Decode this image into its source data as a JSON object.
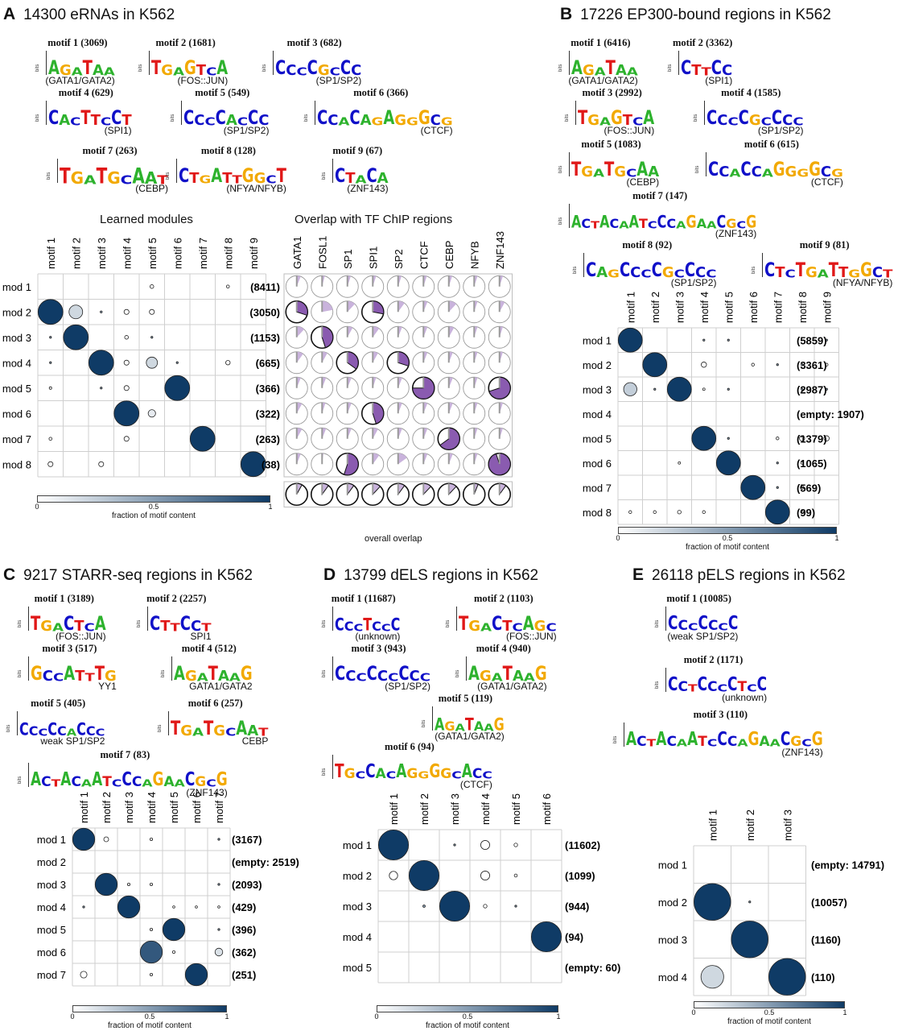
{
  "panels": {
    "A": {
      "letter": "A",
      "title": "14300 eRNAs in K562",
      "motifs": [
        {
          "title": "motif 1 (3069)",
          "seq": "AGATAA",
          "ann": "(GATA1/GATA2)"
        },
        {
          "title": "motif 2 (1681)",
          "seq": "TGAGTCA",
          "ann": "(FOS::JUN)"
        },
        {
          "title": "motif 3 (682)",
          "seq": "CCCCGCCC",
          "ann": "(SP1/SP2)"
        },
        {
          "title": "motif 4 (629)",
          "seq": "CACTTCCT",
          "ann": "(SPI1)"
        },
        {
          "title": "motif 5 (549)",
          "seq": "CCCCACCC",
          "ann": "(SP1/SP2)"
        },
        {
          "title": "motif 6 (366)",
          "seq": "CCACAGAGGGCG",
          "ann": "(CTCF)"
        },
        {
          "title": "motif 7 (263)",
          "seq": "TGATGCAAT",
          "ann": "(CEBP)"
        },
        {
          "title": "motif 8 (128)",
          "seq": "CTGATTGGCT",
          "ann": "(NFYA/NFYB)"
        },
        {
          "title": "motif 9 (67)",
          "seq": "CTACA",
          "ann": "(ZNF143)"
        }
      ],
      "modules_title": "Learned modules",
      "overlap_title": "Overlap with TF ChIP regions",
      "overall_label": "overall overlap",
      "cols": [
        "motif 1",
        "motif 2",
        "motif 3",
        "motif 4",
        "motif 5",
        "motif 6",
        "motif 7",
        "motif 8",
        "motif 9"
      ],
      "rows": [
        "mod 1",
        "mod 2",
        "mod 3",
        "mod 4",
        "mod 5",
        "mod 6",
        "mod 7",
        "mod 8"
      ],
      "counts": [
        "(8411)",
        "(3050)",
        "(1153)",
        "(665)",
        "(366)",
        "(322)",
        "(263)",
        "(38)"
      ],
      "tf_cols": [
        "GATA1",
        "FOSL1",
        "SP1",
        "SPI1",
        "SP2",
        "CTCF",
        "CEBP",
        "NFYB",
        "ZNF143"
      ]
    },
    "B": {
      "letter": "B",
      "title": "17226 EP300-bound regions in K562",
      "motifs": [
        {
          "title": "motif 1 (6416)",
          "seq": "AGATAA",
          "ann": "(GATA1/GATA2)"
        },
        {
          "title": "motif 2 (3362)",
          "seq": "CTTCC",
          "ann": "(SPI1)"
        },
        {
          "title": "motif 3 (2992)",
          "seq": "TGAGTCA",
          "ann": "(FOS::JUN)"
        },
        {
          "title": "motif 4 (1585)",
          "seq": "CCCCGCCCC",
          "ann": "(SP1/SP2)"
        },
        {
          "title": "motif 5 (1083)",
          "seq": "TGATGCAA",
          "ann": "(CEBP)"
        },
        {
          "title": "motif 6 (615)",
          "seq": "CCACCAGGGGCG",
          "ann": "(CTCF)"
        },
        {
          "title": "motif 7 (147)",
          "seq": "ACTACAATCCCAGAACGCG",
          "ann": "(ZNF143)"
        },
        {
          "title": "motif 8 (92)",
          "seq": "CAGCCCCGCCCC",
          "ann": "(SP1/SP2)"
        },
        {
          "title": "motif 9 (81)",
          "seq": "CTCTGATTGGCT",
          "ann": "(NFYA/NFYB)"
        }
      ],
      "cols": [
        "motif 1",
        "motif 2",
        "motif 3",
        "motif 4",
        "motif 5",
        "motif 6",
        "motif 7",
        "motif 8",
        "motif 9"
      ],
      "rows": [
        "mod 1",
        "mod 2",
        "mod 3",
        "mod 4",
        "mod 5",
        "mod 6",
        "mod 7",
        "mod 8"
      ],
      "counts": [
        "(5859)",
        "(3361)",
        "(2987)",
        "(empty: 1907)",
        "(1379)",
        "(1065)",
        "(569)",
        "(99)"
      ]
    },
    "C": {
      "letter": "C",
      "title": "9217 STARR-seq regions in K562",
      "motifs": [
        {
          "title": "motif 1 (3189)",
          "seq": "TGACTCA",
          "ann": "(FOS::JUN)"
        },
        {
          "title": "motif 2 (2257)",
          "seq": "CTTCCT",
          "ann": "SPI1"
        },
        {
          "title": "motif 3 (517)",
          "seq": "GCCATTTG",
          "ann": "YY1"
        },
        {
          "title": "motif 4 (512)",
          "seq": "AGATAAG",
          "ann": "GATA1/GATA2"
        },
        {
          "title": "motif 5 (405)",
          "seq": "CCCCCACCC",
          "ann": "weak SP1/SP2"
        },
        {
          "title": "motif 6 (257)",
          "seq": "TGATGCAAT",
          "ann": "CEBP"
        },
        {
          "title": "motif 7 (83)",
          "seq": "ACTACAATCCCAGAACGCG",
          "ann": "(ZNF143)"
        }
      ],
      "cols": [
        "motif 1",
        "motif 2",
        "motif 3",
        "motif 4",
        "motif 5",
        "motif 6",
        "motif 7"
      ],
      "rows": [
        "mod 1",
        "mod 2",
        "mod 3",
        "mod 4",
        "mod 5",
        "mod 6",
        "mod 7"
      ],
      "counts": [
        "(3167)",
        "(empty: 2519)",
        "(2093)",
        "(429)",
        "(396)",
        "(362)",
        "(251)"
      ]
    },
    "D": {
      "letter": "D",
      "title": "13799 dELS regions in K562",
      "motifs": [
        {
          "title": "motif 1 (11687)",
          "seq": "CCCTCCC",
          "ann": "(unknown)"
        },
        {
          "title": "motif 2 (1103)",
          "seq": "TGACTCAGC",
          "ann": "(FOS::JUN)"
        },
        {
          "title": "motif 3 (943)",
          "seq": "CCCCCCCCC",
          "ann": "(SP1/SP2)"
        },
        {
          "title": "motif 4 (940)",
          "seq": "AGATAAG",
          "ann": "(GATA1/GATA2)"
        },
        {
          "title": "motif 5 (119)",
          "seq": "AGATAAG",
          "ann": "(GATA1/GATA2)"
        },
        {
          "title": "motif 6 (94)",
          "seq": "TGCCACAGGGGCACC",
          "ann": "(CTCF)"
        }
      ],
      "cols": [
        "motif 1",
        "motif 2",
        "motif 3",
        "motif 4",
        "motif 5",
        "motif 6"
      ],
      "rows": [
        "mod 1",
        "mod 2",
        "mod 3",
        "mod 4",
        "mod 5"
      ],
      "counts": [
        "(11602)",
        "(1099)",
        "(944)",
        "(94)",
        "(empty: 60)"
      ]
    },
    "E": {
      "letter": "E",
      "title": "26118 pELS regions in K562",
      "motifs": [
        {
          "title": "motif 1 (10085)",
          "seq": "CCCCCCC",
          "ann": "(weak SP1/SP2)"
        },
        {
          "title": "motif 2 (1171)",
          "seq": "CCTCCCCTCC",
          "ann": "(unknown)"
        },
        {
          "title": "motif 3 (110)",
          "seq": "ACTACAATCCCAGAACGCG",
          "ann": "(ZNF143)"
        }
      ],
      "cols": [
        "motif 1",
        "motif 2",
        "motif 3"
      ],
      "rows": [
        "mod 1",
        "mod 2",
        "mod 3",
        "mod 4"
      ],
      "counts": [
        "(empty: 14791)",
        "(10057)",
        "(1160)",
        "(110)"
      ]
    }
  },
  "colorbar": {
    "label": "fraction of motif content",
    "ticks": [
      "0",
      "0.5",
      "1"
    ],
    "low_color": "#ffffff",
    "high_color": "#0f3b66"
  },
  "colors": {
    "A": "#2db22d",
    "C": "#1010c8",
    "G": "#f2a900",
    "T": "#e01818",
    "pie_fill": "#8a5bb0",
    "pie_light": "#c9b3dc",
    "pie_gray": "#9a9a9a"
  },
  "bits_label": "bits"
}
